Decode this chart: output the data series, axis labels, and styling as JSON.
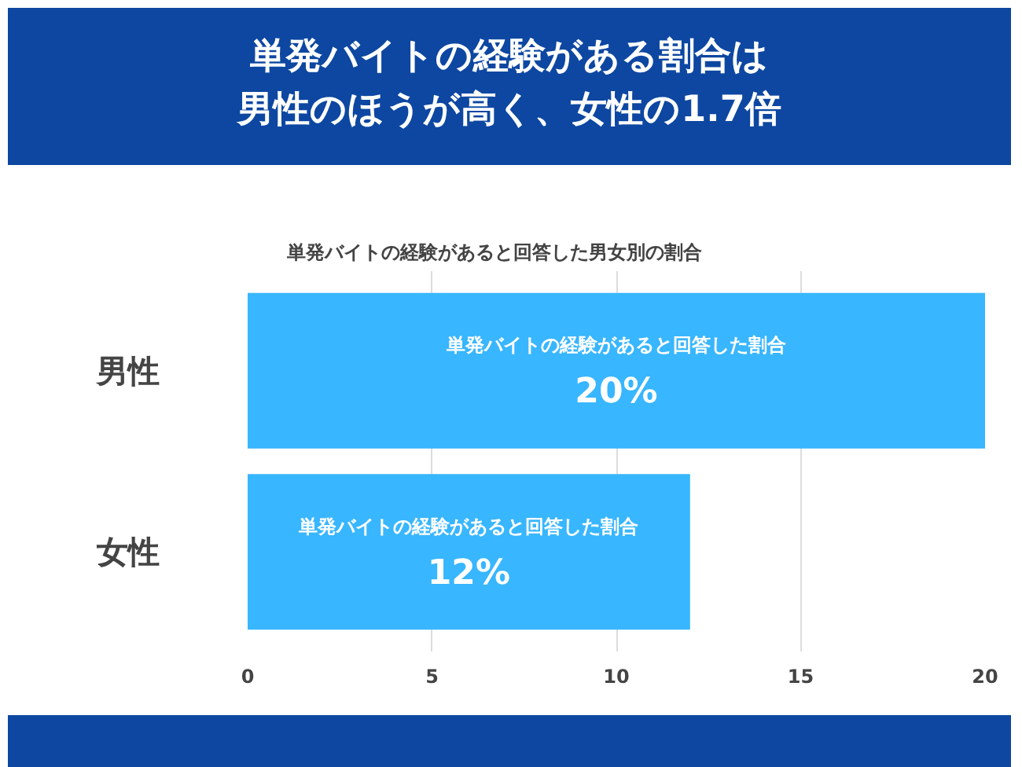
{
  "chart_data": {
    "type": "bar",
    "orientation": "horizontal",
    "title": "単発バイトの経験がある割合は男性のほうが高く、女性の1.7倍",
    "subtitle": "単発バイトの経験があると回答した男女別の割合",
    "categories": [
      "男性",
      "女性"
    ],
    "values": [
      20,
      12
    ],
    "color": "#38b6ff",
    "value_labels": [
      "20%",
      "12%"
    ],
    "annotations": [
      "単発バイトの経験があると回答した割合",
      "単発バイトの経験があると回答した割合"
    ],
    "xlim": [
      0,
      20
    ],
    "xticks": [
      0,
      5,
      10,
      15,
      20
    ],
    "grid": "x"
  }
}
